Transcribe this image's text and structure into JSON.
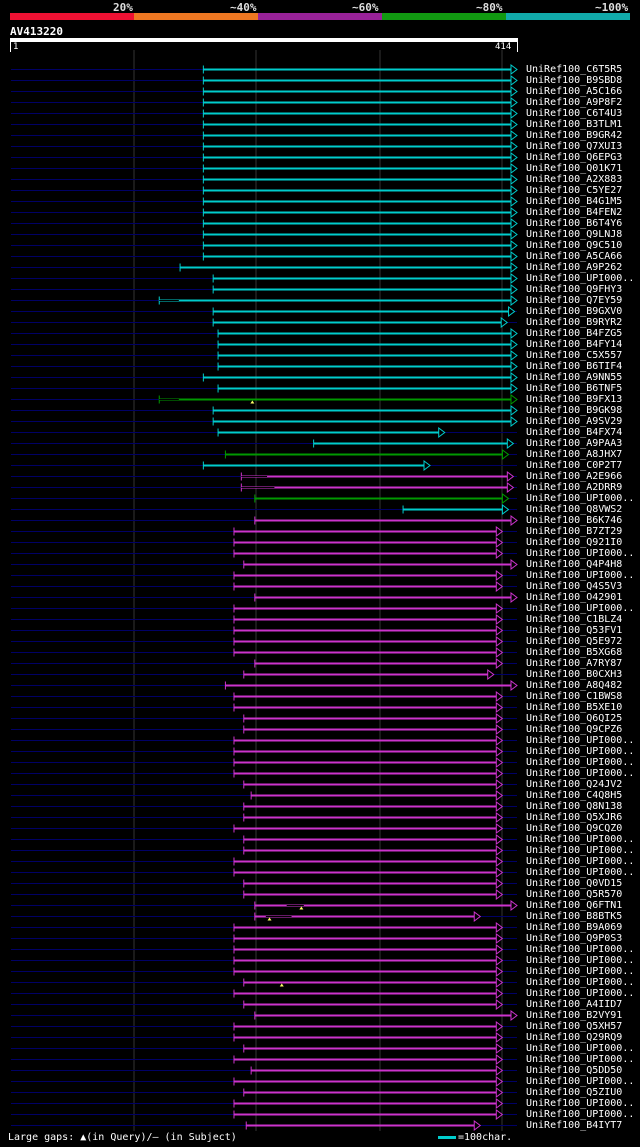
{
  "scale_legend": {
    "labels": [
      "20%",
      "~40%",
      "~60%",
      "~80%",
      "~100%"
    ],
    "colors": [
      "#ee1133",
      "#ee7722",
      "#992299",
      "#119911",
      "#11aaaa"
    ]
  },
  "query": {
    "name": "AV413220",
    "start": "1",
    "end": "414"
  },
  "hits": [
    {
      "id": "UniRef100_C6T5R5",
      "s": 158,
      "e": 414,
      "c": "cyan"
    },
    {
      "id": "UniRef100_B9SBD8",
      "s": 158,
      "e": 414,
      "c": "cyan"
    },
    {
      "id": "UniRef100_A5C166",
      "s": 158,
      "e": 414,
      "c": "cyan"
    },
    {
      "id": "UniRef100_A9P8F2",
      "s": 158,
      "e": 414,
      "c": "cyan"
    },
    {
      "id": "UniRef100_C6T4U3",
      "s": 158,
      "e": 414,
      "c": "cyan"
    },
    {
      "id": "UniRef100_B3TLM1",
      "s": 158,
      "e": 414,
      "c": "cyan"
    },
    {
      "id": "UniRef100_B9GR42",
      "s": 158,
      "e": 414,
      "c": "cyan"
    },
    {
      "id": "UniRef100_Q7XUI3",
      "s": 158,
      "e": 414,
      "c": "cyan"
    },
    {
      "id": "UniRef100_Q6EPG3",
      "s": 158,
      "e": 414,
      "c": "cyan"
    },
    {
      "id": "UniRef100_Q01K71",
      "s": 158,
      "e": 414,
      "c": "cyan"
    },
    {
      "id": "UniRef100_A2X883",
      "s": 158,
      "e": 414,
      "c": "cyan"
    },
    {
      "id": "UniRef100_C5YE27",
      "s": 158,
      "e": 414,
      "c": "cyan"
    },
    {
      "id": "UniRef100_B4G1M5",
      "s": 158,
      "e": 414,
      "c": "cyan"
    },
    {
      "id": "UniRef100_B4FEN2",
      "s": 158,
      "e": 414,
      "c": "cyan"
    },
    {
      "id": "UniRef100_B6T4Y6",
      "s": 158,
      "e": 414,
      "c": "cyan"
    },
    {
      "id": "UniRef100_Q9LNJ8",
      "s": 158,
      "e": 414,
      "c": "cyan"
    },
    {
      "id": "UniRef100_Q9C510",
      "s": 158,
      "e": 414,
      "c": "cyan"
    },
    {
      "id": "UniRef100_A5CA66",
      "s": 158,
      "e": 414,
      "c": "cyan"
    },
    {
      "id": "UniRef100_A9P262",
      "s": 139,
      "e": 414,
      "c": "cyan"
    },
    {
      "id": "UniRef100_UPI000..",
      "s": 166,
      "e": 414,
      "c": "cyan"
    },
    {
      "id": "UniRef100_Q9FHY3",
      "s": 166,
      "e": 414,
      "c": "cyan"
    },
    {
      "id": "UniRef100_Q7EY59",
      "s": 122,
      "e": 414,
      "c": "cyan",
      "gapS": 122,
      "gapE": 138
    },
    {
      "id": "UniRef100_B9GXV0",
      "s": 166,
      "e": 412,
      "c": "cyan"
    },
    {
      "id": "UniRef100_B9RYR2",
      "s": 166,
      "e": 406,
      "c": "cyan"
    },
    {
      "id": "UniRef100_B4FZG5",
      "s": 170,
      "e": 414,
      "c": "cyan"
    },
    {
      "id": "UniRef100_B4FY14",
      "s": 170,
      "e": 414,
      "c": "cyan"
    },
    {
      "id": "UniRef100_C5X557",
      "s": 170,
      "e": 414,
      "c": "cyan"
    },
    {
      "id": "UniRef100_B6TIF4",
      "s": 170,
      "e": 414,
      "c": "cyan"
    },
    {
      "id": "UniRef100_A9NN55",
      "s": 158,
      "e": 414,
      "c": "cyan"
    },
    {
      "id": "UniRef100_B6TNF5",
      "s": 170,
      "e": 414,
      "c": "cyan"
    },
    {
      "id": "UniRef100_B9FX13",
      "s": 122,
      "e": 414,
      "c": "green",
      "gapS": 122,
      "gapE": 138,
      "tri": 198
    },
    {
      "id": "UniRef100_B9GK98",
      "s": 166,
      "e": 414,
      "c": "cyan"
    },
    {
      "id": "UniRef100_A9SV29",
      "s": 166,
      "e": 414,
      "c": "cyan"
    },
    {
      "id": "UniRef100_B4FX74",
      "s": 170,
      "e": 355,
      "c": "cyan"
    },
    {
      "id": "UniRef100_A9PAA3",
      "s": 248,
      "e": 411,
      "c": "cyan"
    },
    {
      "id": "UniRef100_A8JHX7",
      "s": 176,
      "e": 407,
      "c": "green"
    },
    {
      "id": "UniRef100_C0P2T7",
      "s": 158,
      "e": 343,
      "c": "cyan"
    },
    {
      "id": "UniRef100_A2E966",
      "s": 189,
      "e": 411,
      "c": "purple",
      "gapS": 189,
      "gapE": 210
    },
    {
      "id": "UniRef100_A2DRR9",
      "s": 189,
      "e": 411,
      "c": "purple",
      "gapS": 189,
      "gapE": 216
    },
    {
      "id": "UniRef100_UPI000..",
      "s": 200,
      "e": 407,
      "c": "green"
    },
    {
      "id": "UniRef100_Q8VWS2",
      "s": 321,
      "e": 407,
      "c": "cyan"
    },
    {
      "id": "UniRef100_B6K746",
      "s": 200,
      "e": 414,
      "c": "purple"
    },
    {
      "id": "UniRef100_B7ZT29",
      "s": 183,
      "e": 402,
      "c": "purple"
    },
    {
      "id": "UniRef100_Q921I0",
      "s": 183,
      "e": 402,
      "c": "purple"
    },
    {
      "id": "UniRef100_UPI000..",
      "s": 183,
      "e": 402,
      "c": "purple"
    },
    {
      "id": "UniRef100_Q4P4H8",
      "s": 191,
      "e": 414,
      "c": "purple"
    },
    {
      "id": "UniRef100_UPI000..",
      "s": 183,
      "e": 402,
      "c": "purple"
    },
    {
      "id": "UniRef100_Q4S5V3",
      "s": 183,
      "e": 402,
      "c": "purple"
    },
    {
      "id": "UniRef100_O42901",
      "s": 200,
      "e": 414,
      "c": "purple"
    },
    {
      "id": "UniRef100_UPI000..",
      "s": 183,
      "e": 402,
      "c": "purple"
    },
    {
      "id": "UniRef100_C1BLZ4",
      "s": 183,
      "e": 402,
      "c": "purple"
    },
    {
      "id": "UniRef100_Q53FV1",
      "s": 183,
      "e": 402,
      "c": "purple"
    },
    {
      "id": "UniRef100_Q5E972",
      "s": 183,
      "e": 402,
      "c": "purple"
    },
    {
      "id": "UniRef100_B5XG68",
      "s": 183,
      "e": 402,
      "c": "purple"
    },
    {
      "id": "UniRef100_A7RY87",
      "s": 200,
      "e": 402,
      "c": "purple"
    },
    {
      "id": "UniRef100_B0CXH3",
      "s": 191,
      "e": 395,
      "c": "purple"
    },
    {
      "id": "UniRef100_A8Q482",
      "s": 176,
      "e": 414,
      "c": "purple"
    },
    {
      "id": "UniRef100_C1BWS8",
      "s": 183,
      "e": 402,
      "c": "purple"
    },
    {
      "id": "UniRef100_B5XE10",
      "s": 183,
      "e": 402,
      "c": "purple"
    },
    {
      "id": "UniRef100_Q6QI25",
      "s": 191,
      "e": 402,
      "c": "purple"
    },
    {
      "id": "UniRef100_Q9CPZ6",
      "s": 191,
      "e": 402,
      "c": "purple"
    },
    {
      "id": "UniRef100_UPI000..",
      "s": 183,
      "e": 402,
      "c": "purple"
    },
    {
      "id": "UniRef100_UPI000..",
      "s": 183,
      "e": 402,
      "c": "purple"
    },
    {
      "id": "UniRef100_UPI000..",
      "s": 183,
      "e": 402,
      "c": "purple"
    },
    {
      "id": "UniRef100_UPI000..",
      "s": 183,
      "e": 402,
      "c": "purple"
    },
    {
      "id": "UniRef100_Q24JV2",
      "s": 191,
      "e": 402,
      "c": "purple"
    },
    {
      "id": "UniRef100_C4Q8H5",
      "s": 197,
      "e": 402,
      "c": "purple"
    },
    {
      "id": "UniRef100_Q8N138",
      "s": 191,
      "e": 402,
      "c": "purple"
    },
    {
      "id": "UniRef100_Q5XJR6",
      "s": 191,
      "e": 402,
      "c": "purple"
    },
    {
      "id": "UniRef100_Q9CQZ0",
      "s": 183,
      "e": 402,
      "c": "purple"
    },
    {
      "id": "UniRef100_UPI000..",
      "s": 191,
      "e": 402,
      "c": "purple"
    },
    {
      "id": "UniRef100_UPI000..",
      "s": 191,
      "e": 402,
      "c": "purple"
    },
    {
      "id": "UniRef100_UPI000..",
      "s": 183,
      "e": 402,
      "c": "purple"
    },
    {
      "id": "UniRef100_UPI000..",
      "s": 183,
      "e": 402,
      "c": "purple"
    },
    {
      "id": "UniRef100_Q0VD15",
      "s": 191,
      "e": 402,
      "c": "purple"
    },
    {
      "id": "UniRef100_Q5R570",
      "s": 191,
      "e": 402,
      "c": "purple"
    },
    {
      "id": "UniRef100_Q6FTN1",
      "s": 200,
      "e": 414,
      "c": "purple",
      "gapS": 226,
      "gapE": 240,
      "tri": 238
    },
    {
      "id": "UniRef100_B8BTK5",
      "s": 200,
      "e": 384,
      "c": "purple",
      "gapS": 209,
      "gapE": 230,
      "tri": 212
    },
    {
      "id": "UniRef100_B9A069",
      "s": 183,
      "e": 402,
      "c": "purple"
    },
    {
      "id": "UniRef100_Q9P0S3",
      "s": 183,
      "e": 402,
      "c": "purple"
    },
    {
      "id": "UniRef100_UPI000..",
      "s": 183,
      "e": 402,
      "c": "purple"
    },
    {
      "id": "UniRef100_UPI000..",
      "s": 183,
      "e": 402,
      "c": "purple"
    },
    {
      "id": "UniRef100_UPI000..",
      "s": 183,
      "e": 402,
      "c": "purple"
    },
    {
      "id": "UniRef100_UPI000..",
      "s": 191,
      "e": 402,
      "c": "purple",
      "tri": 222
    },
    {
      "id": "UniRef100_UPI000..",
      "s": 183,
      "e": 402,
      "c": "purple"
    },
    {
      "id": "UniRef100_A4IID7",
      "s": 191,
      "e": 402,
      "c": "purple"
    },
    {
      "id": "UniRef100_B2VY91",
      "s": 200,
      "e": 414,
      "c": "purple"
    },
    {
      "id": "UniRef100_Q5XH57",
      "s": 183,
      "e": 402,
      "c": "purple"
    },
    {
      "id": "UniRef100_Q29RQ9",
      "s": 183,
      "e": 402,
      "c": "purple"
    },
    {
      "id": "UniRef100_UPI000..",
      "s": 191,
      "e": 402,
      "c": "purple"
    },
    {
      "id": "UniRef100_UPI000..",
      "s": 183,
      "e": 402,
      "c": "purple"
    },
    {
      "id": "UniRef100_Q5DD50",
      "s": 197,
      "e": 402,
      "c": "purple"
    },
    {
      "id": "UniRef100_UPI000..",
      "s": 183,
      "e": 402,
      "c": "purple"
    },
    {
      "id": "UniRef100_Q5ZIU0",
      "s": 191,
      "e": 402,
      "c": "purple"
    },
    {
      "id": "UniRef100_UPI000..",
      "s": 183,
      "e": 402,
      "c": "purple"
    },
    {
      "id": "UniRef100_UPI000..",
      "s": 183,
      "e": 402,
      "c": "purple"
    },
    {
      "id": "UniRef100_B4IYT7",
      "s": 193,
      "e": 384,
      "c": "purple"
    }
  ],
  "colors": {
    "cyan": "#00cccc",
    "green": "#009900",
    "purple": "#cc33cc",
    "backbone": "#000066",
    "grid": "#333333"
  },
  "footer": {
    "gaps_text": "Large gaps: ▲(in Query)/– (in Subject)",
    "scale_text": "=100char."
  }
}
